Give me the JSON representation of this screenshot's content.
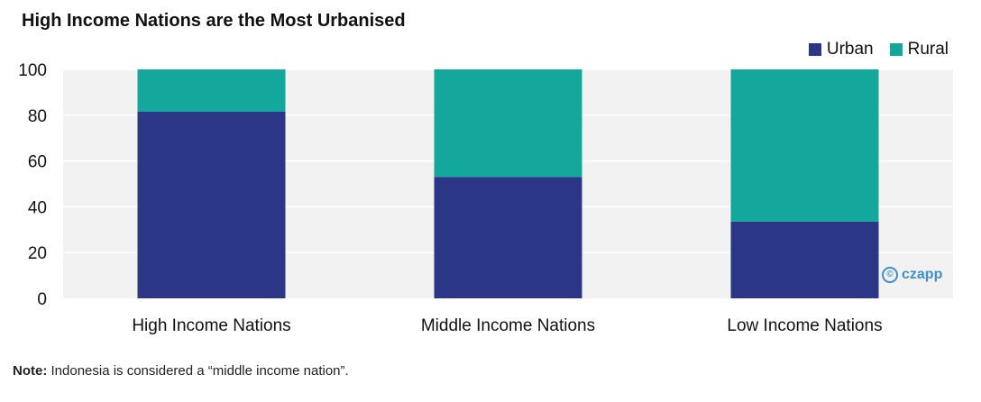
{
  "title": "High Income Nations are the Most Urbanised",
  "note": {
    "label": "Note:",
    "text": " Indonesia is considered a “middle income nation”."
  },
  "watermark": "czapp",
  "colors": {
    "urban": "#2b3686",
    "rural": "#14a89c",
    "plot_bg": "#f2f2f2",
    "grid": "#ffffff"
  },
  "chart_data": {
    "type": "bar",
    "stacked": true,
    "categories": [
      "High Income Nations",
      "Middle Income Nations",
      "Low Income Nations"
    ],
    "series": [
      {
        "name": "Urban",
        "values": [
          81.5,
          53,
          33.5
        ]
      },
      {
        "name": "Rural",
        "values": [
          18.5,
          47,
          66.5
        ]
      }
    ],
    "ylim": [
      0,
      100
    ],
    "yticks": [
      0,
      20,
      40,
      60,
      80,
      100
    ],
    "grid": true,
    "legend": "top-right"
  }
}
